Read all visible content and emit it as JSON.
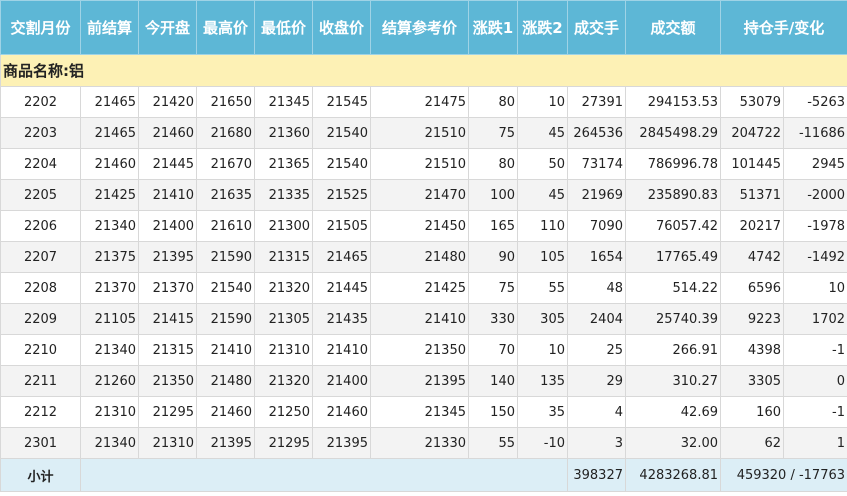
{
  "table": {
    "headers": [
      "交割月份",
      "前结算",
      "今开盘",
      "最高价",
      "最低价",
      "收盘价",
      "结算参考价",
      "涨跌1",
      "涨跌2",
      "成交手",
      "成交额",
      "持仓手/变化"
    ],
    "section": "商品名称:铝",
    "rows": [
      [
        "2202",
        "21465",
        "21420",
        "21650",
        "21345",
        "21545",
        "21475",
        "80",
        "10",
        "27391",
        "294153.53",
        "53079",
        "-5263"
      ],
      [
        "2203",
        "21465",
        "21460",
        "21680",
        "21360",
        "21540",
        "21510",
        "75",
        "45",
        "264536",
        "2845498.29",
        "204722",
        "-11686"
      ],
      [
        "2204",
        "21460",
        "21445",
        "21670",
        "21365",
        "21540",
        "21510",
        "80",
        "50",
        "73174",
        "786996.78",
        "101445",
        "2945"
      ],
      [
        "2205",
        "21425",
        "21410",
        "21635",
        "21335",
        "21525",
        "21470",
        "100",
        "45",
        "21969",
        "235890.83",
        "51371",
        "-2000"
      ],
      [
        "2206",
        "21340",
        "21400",
        "21610",
        "21300",
        "21505",
        "21450",
        "165",
        "110",
        "7090",
        "76057.42",
        "20217",
        "-1978"
      ],
      [
        "2207",
        "21375",
        "21395",
        "21590",
        "21315",
        "21465",
        "21480",
        "90",
        "105",
        "1654",
        "17765.49",
        "4742",
        "-1492"
      ],
      [
        "2208",
        "21370",
        "21370",
        "21540",
        "21320",
        "21445",
        "21425",
        "75",
        "55",
        "48",
        "514.22",
        "6596",
        "10"
      ],
      [
        "2209",
        "21105",
        "21415",
        "21590",
        "21305",
        "21435",
        "21410",
        "330",
        "305",
        "2404",
        "25740.39",
        "9223",
        "1702"
      ],
      [
        "2210",
        "21340",
        "21315",
        "21410",
        "21310",
        "21410",
        "21350",
        "70",
        "10",
        "25",
        "266.91",
        "4398",
        "-1"
      ],
      [
        "2211",
        "21260",
        "21350",
        "21480",
        "21320",
        "21400",
        "21395",
        "140",
        "135",
        "29",
        "310.27",
        "3305",
        "0"
      ],
      [
        "2212",
        "21310",
        "21295",
        "21460",
        "21250",
        "21460",
        "21345",
        "150",
        "35",
        "4",
        "42.69",
        "160",
        "-1"
      ],
      [
        "2301",
        "21340",
        "21310",
        "21395",
        "21295",
        "21395",
        "21330",
        "55",
        "-10",
        "3",
        "32.00",
        "62",
        "1"
      ]
    ],
    "summary": {
      "label": "小计",
      "volume": "398327",
      "turnover": "4283268.81",
      "open_interest": "459320 / -17763"
    }
  }
}
